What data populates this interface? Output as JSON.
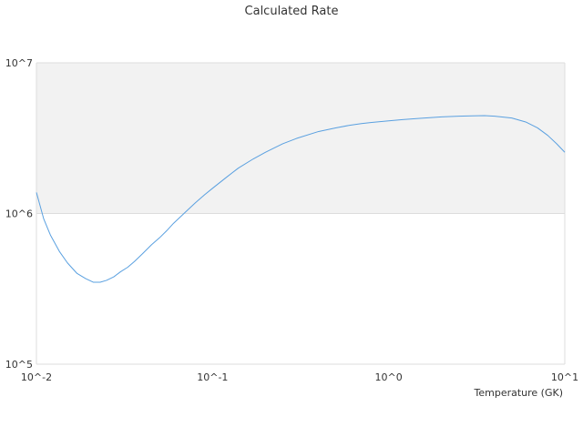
{
  "chart_data": {
    "type": "line",
    "title": "Calculated Rate",
    "xlabel": "Temperature (GK)",
    "ylabel": "",
    "x_scale": "log",
    "y_scale": "log",
    "xlim": [
      0.01,
      10
    ],
    "ylim": [
      100000,
      10000000
    ],
    "x_tick_labels": [
      "10^-2",
      "10^-1",
      "10^0",
      "10^1"
    ],
    "y_tick_labels": [
      "10^5",
      "10^6",
      "10^7"
    ],
    "grid": true,
    "band": {
      "from": 1000000,
      "to": 10000000,
      "color": "#f2f2f2"
    },
    "colors": {
      "line": "#5aa0e0",
      "grid": "#dddddd",
      "axis": "#cccccc"
    },
    "series": [
      {
        "x": [
          0.01,
          0.011,
          0.012,
          0.0135,
          0.015,
          0.017,
          0.019,
          0.021,
          0.023,
          0.025,
          0.0275,
          0.03,
          0.033,
          0.036,
          0.04,
          0.045,
          0.05,
          0.055,
          0.06,
          0.07,
          0.08,
          0.09,
          0.1,
          0.12,
          0.14,
          0.17,
          0.2,
          0.25,
          0.3,
          0.4,
          0.5,
          0.6,
          0.7,
          0.8,
          1.0,
          1.2,
          1.5,
          2.0,
          2.5,
          3.0,
          3.5,
          4.0,
          5.0,
          6.0,
          7.0,
          8.0,
          9.0,
          10.0
        ],
        "y": [
          1380000,
          920000,
          720000,
          560000,
          470000,
          400000,
          370000,
          350000,
          350000,
          360000,
          380000,
          410000,
          440000,
          480000,
          540000,
          620000,
          690000,
          770000,
          860000,
          1020000,
          1180000,
          1330000,
          1470000,
          1740000,
          2000000,
          2300000,
          2550000,
          2900000,
          3150000,
          3500000,
          3700000,
          3850000,
          3950000,
          4020000,
          4120000,
          4200000,
          4280000,
          4380000,
          4420000,
          4450000,
          4460000,
          4420000,
          4300000,
          4050000,
          3700000,
          3300000,
          2900000,
          2550000
        ]
      }
    ]
  }
}
